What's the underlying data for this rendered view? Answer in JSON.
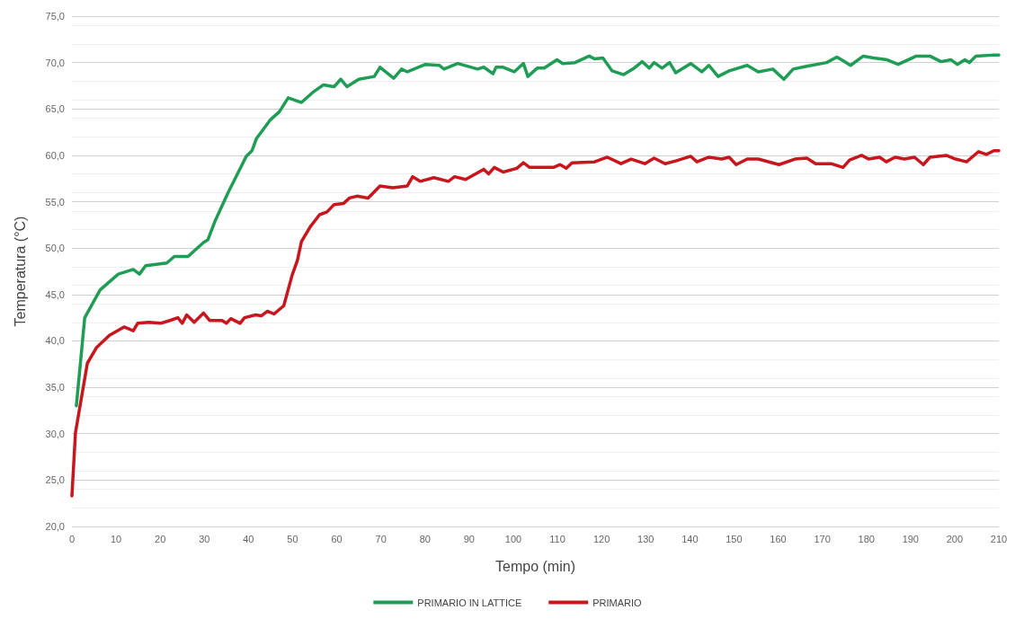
{
  "chart_data": {
    "type": "line",
    "xlabel": "Tempo (min)",
    "ylabel": "Temperatura (°C)",
    "xlim": [
      0,
      210
    ],
    "xticks": [
      0,
      10,
      20,
      30,
      40,
      50,
      60,
      70,
      80,
      90,
      100,
      110,
      120,
      130,
      140,
      150,
      160,
      170,
      180,
      190,
      200,
      210
    ],
    "ylim": [
      20,
      75
    ],
    "yticks": [
      {
        "value": 20,
        "label": "20,0"
      },
      {
        "value": 25,
        "label": "25,0"
      },
      {
        "value": 30,
        "label": "30,0"
      },
      {
        "value": 35,
        "label": "35,0"
      },
      {
        "value": 40,
        "label": "40,0"
      },
      {
        "value": 45,
        "label": "45,0"
      },
      {
        "value": 50,
        "label": "50,0"
      },
      {
        "value": 55,
        "label": "55,0"
      },
      {
        "value": 60,
        "label": "60,0"
      },
      {
        "value": 65,
        "label": "65,0"
      },
      {
        "value": 70,
        "label": "70,0"
      },
      {
        "value": 75,
        "label": "75,0"
      }
    ],
    "grid": "y",
    "legend": "bottom",
    "marker": "none",
    "line_style": "solid",
    "series": [
      {
        "name": "PRIMARIO IN LATTICE",
        "color": "#1f9d55",
        "x": [
          1,
          2.9,
          6.4,
          10.5,
          13.9,
          15.3,
          16.7,
          21.5,
          23.2,
          26.3,
          27.7,
          29.8,
          30.8,
          32.5,
          35.4,
          39.5,
          40.8,
          41.8,
          44.9,
          47,
          49,
          52,
          54.6,
          57,
          59.4,
          60.9,
          62.3,
          65,
          68.5,
          69.8,
          72.9,
          74.7,
          76,
          80.1,
          83.2,
          84.3,
          87.4,
          91.9,
          93.3,
          95.4,
          96.1,
          97.7,
          100.2,
          102.3,
          103.3,
          105.4,
          107,
          109.9,
          111.2,
          114,
          117.2,
          118.4,
          120.3,
          122.4,
          125,
          127.1,
          129.2,
          130.8,
          131.9,
          133.7,
          135.4,
          136.8,
          140.2,
          142.7,
          144.3,
          146.4,
          148.9,
          153,
          155.5,
          158.8,
          161.3,
          163.4,
          166.5,
          171,
          173.3,
          174.7,
          176.4,
          179.3,
          181.6,
          184.7,
          187.2,
          191.3,
          194.4,
          196.9,
          199.2,
          200.6,
          202.3,
          203.3,
          204.8,
          208.5,
          210
        ],
        "values": [
          33,
          42.5,
          45.5,
          47.2,
          47.7,
          47.2,
          48.1,
          48.4,
          49.1,
          49.1,
          49.7,
          50.6,
          50.9,
          53,
          56,
          59.9,
          60.5,
          61.8,
          63.8,
          64.7,
          66.2,
          65.7,
          66.8,
          67.6,
          67.4,
          68.2,
          67.4,
          68.2,
          68.5,
          69.5,
          68.3,
          69.3,
          69,
          69.8,
          69.7,
          69.3,
          69.9,
          69.3,
          69.5,
          68.8,
          69.5,
          69.5,
          69,
          69.9,
          68.5,
          69.4,
          69.4,
          70.3,
          69.9,
          70,
          70.7,
          70.4,
          70.5,
          69.1,
          68.7,
          69.3,
          70.1,
          69.4,
          70,
          69.4,
          70,
          68.9,
          69.9,
          69,
          69.7,
          68.5,
          69.1,
          69.7,
          69,
          69.3,
          68.2,
          69.3,
          69.6,
          70,
          70.6,
          70.2,
          69.7,
          70.7,
          70.5,
          70.3,
          69.8,
          70.7,
          70.7,
          70.1,
          70.3,
          69.8,
          70.3,
          70,
          70.7,
          70.8,
          70.8
        ]
      },
      {
        "name": "PRIMARIO",
        "color": "#c8161d",
        "x": [
          0,
          0.8,
          3.5,
          5.6,
          8.5,
          11.8,
          13.9,
          14.9,
          17.4,
          20.1,
          22.2,
          24,
          25,
          26,
          27.7,
          29.8,
          31.2,
          34,
          35,
          36,
          38.1,
          39.1,
          41.6,
          42.9,
          44.3,
          45.8,
          48,
          49.9,
          51.1,
          52,
          54,
          56.1,
          57.8,
          59.4,
          61.5,
          62.9,
          64.6,
          67.1,
          69.8,
          72.7,
          76,
          77.2,
          78.9,
          82,
          85.3,
          86.7,
          89.2,
          93.3,
          94.4,
          95.7,
          97.7,
          100.8,
          102.3,
          103.7,
          109.1,
          110.6,
          112,
          113.3,
          118.4,
          121.3,
          124.4,
          126.7,
          129.8,
          131.9,
          134.4,
          136.8,
          140.2,
          141.6,
          144.3,
          147.2,
          148.9,
          150.5,
          153,
          155.5,
          160.2,
          163.8,
          166.5,
          168.5,
          172,
          174.7,
          176.2,
          178.9,
          180.5,
          183,
          184.5,
          186.5,
          188.6,
          190.9,
          192.9,
          194.4,
          198.1,
          200.2,
          202.7,
          205.4,
          207.2,
          208.9,
          210
        ],
        "values": [
          23.3,
          30.1,
          37.6,
          39.3,
          40.6,
          41.5,
          41.1,
          41.9,
          42,
          41.9,
          42.2,
          42.5,
          41.9,
          42.8,
          42,
          43,
          42.2,
          42.2,
          41.9,
          42.4,
          41.9,
          42.5,
          42.8,
          42.7,
          43.2,
          42.9,
          43.8,
          47.1,
          48.7,
          50.7,
          52.3,
          53.6,
          53.9,
          54.7,
          54.8,
          55.4,
          55.6,
          55.4,
          56.7,
          56.5,
          56.7,
          57.7,
          57.2,
          57.6,
          57.2,
          57.7,
          57.4,
          58.5,
          58,
          58.7,
          58.2,
          58.6,
          59.2,
          58.7,
          58.7,
          59,
          58.6,
          59.2,
          59.3,
          59.8,
          59.1,
          59.6,
          59.1,
          59.7,
          59.1,
          59.4,
          59.9,
          59.3,
          59.8,
          59.6,
          59.8,
          59,
          59.6,
          59.6,
          59,
          59.6,
          59.7,
          59.1,
          59.1,
          58.7,
          59.5,
          60,
          59.6,
          59.8,
          59.3,
          59.8,
          59.6,
          59.8,
          59,
          59.8,
          60,
          59.6,
          59.3,
          60.4,
          60.1,
          60.5,
          60.5
        ]
      }
    ]
  }
}
